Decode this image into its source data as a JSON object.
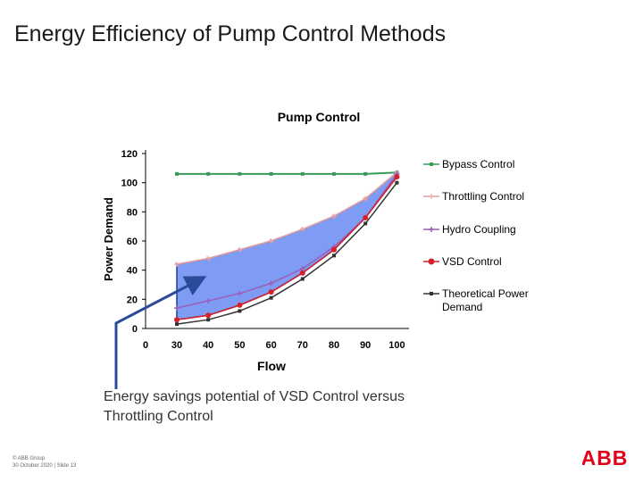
{
  "slide": {
    "title": "Energy Efficiency of Pump Control Methods",
    "caption_line1": "Energy savings potential of VSD Control versus",
    "caption_line2": "Throttling Control",
    "footer_line1": "© ABB Group",
    "footer_line2": "30 October 2020 | Slide 13",
    "logo_text": "ABB"
  },
  "colors": {
    "bypass": "#3a9a5b",
    "throttling": "#e8a0a0",
    "hydro": "#9a5fb8",
    "vsd": "#d4202a",
    "theoretical": "#333333",
    "savings_fill": "#7f9cf5",
    "savings_edge": "#1f3f8f",
    "arrow": "#2a4a9a",
    "abb_red": "#e2001a"
  },
  "chart_data": {
    "type": "line",
    "title": "Pump Control",
    "xlabel": "Flow",
    "ylabel": "Power Demand",
    "x": [
      30,
      40,
      50,
      60,
      70,
      80,
      90,
      100
    ],
    "x_ticks": [
      "0",
      "30",
      "40",
      "50",
      "60",
      "70",
      "80",
      "90",
      "100"
    ],
    "y_ticks": [
      "0",
      "20",
      "40",
      "60",
      "80",
      "100",
      "120"
    ],
    "ylim": [
      0,
      120
    ],
    "grid": false,
    "legend_position": "right",
    "series": [
      {
        "name": "Bypass Control",
        "key": "bypass",
        "marker": "square",
        "values": [
          106,
          106,
          106,
          106,
          106,
          106,
          106,
          107
        ]
      },
      {
        "name": "Throttling Control",
        "key": "throttling",
        "marker": "star",
        "values": [
          44,
          48,
          54,
          60,
          68,
          77,
          89,
          107
        ]
      },
      {
        "name": "Hydro Coupling",
        "key": "hydro",
        "marker": "plus",
        "values": [
          14,
          19,
          24,
          31,
          41,
          56,
          76,
          106
        ]
      },
      {
        "name": "VSD Control",
        "key": "vsd",
        "marker": "circle",
        "values": [
          6,
          9,
          16,
          25,
          38,
          54,
          76,
          104
        ]
      },
      {
        "name": "Theoretical Power Demand",
        "key": "theoretical",
        "marker": "square",
        "values": [
          3,
          6,
          12,
          21,
          34,
          50,
          72,
          100
        ]
      }
    ]
  }
}
